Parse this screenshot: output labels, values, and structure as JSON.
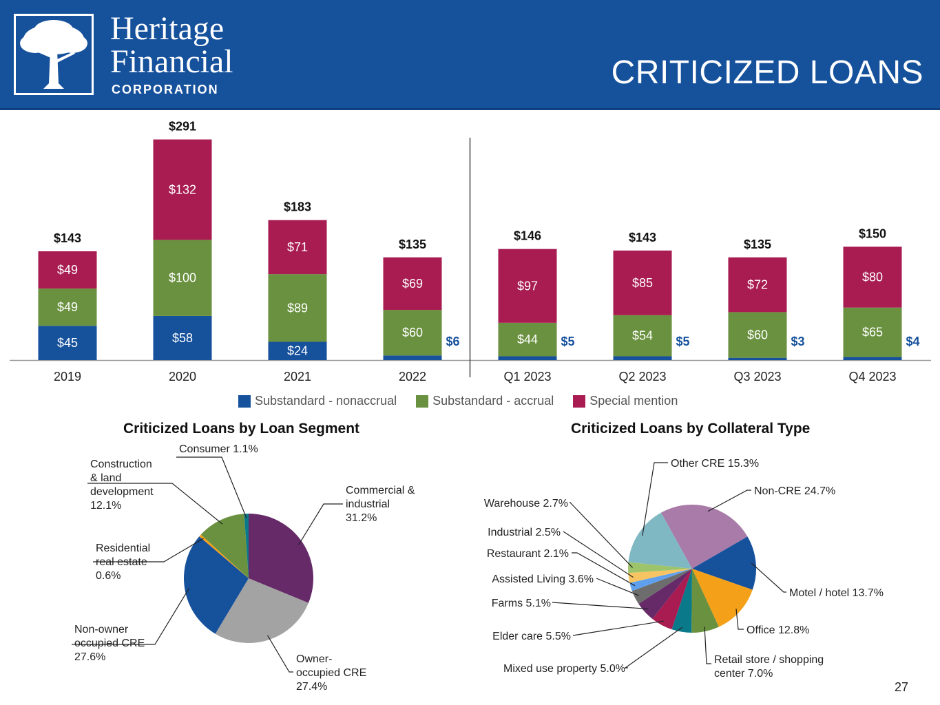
{
  "header": {
    "logo_line1": "Heritage",
    "logo_line2": "Financial",
    "logo_line3": "CORPORATION",
    "title": "CRITICIZED LOANS",
    "brand_color": "#16519c"
  },
  "page_number": "27",
  "chart_data": [
    {
      "type": "bar",
      "stacked": true,
      "categories": [
        "2019",
        "2020",
        "2021",
        "2022",
        "Q1 2023",
        "Q2 2023",
        "Q3 2023",
        "Q4 2023"
      ],
      "series": [
        {
          "name": "Substandard - nonaccrual",
          "color": "#16519c",
          "values": [
            45,
            58,
            24,
            6,
            5,
            5,
            3,
            4
          ],
          "labels": [
            "$45",
            "$58",
            "$24",
            "$6",
            "$5",
            "$5",
            "$3",
            "$4"
          ]
        },
        {
          "name": "Substandard - accrual",
          "color": "#6a913f",
          "values": [
            49,
            100,
            89,
            60,
            44,
            54,
            60,
            65
          ],
          "labels": [
            "$49",
            "$100",
            "$89",
            "$60",
            "$44",
            "$54",
            "$60",
            "$65"
          ]
        },
        {
          "name": "Special mention",
          "color": "#a81c52",
          "values": [
            49,
            132,
            71,
            69,
            97,
            85,
            72,
            80
          ],
          "labels": [
            "$49",
            "$132",
            "$71",
            "$69",
            "$97",
            "$85",
            "$72",
            "$80"
          ]
        }
      ],
      "totals": [
        143,
        291,
        183,
        135,
        146,
        143,
        135,
        150
      ],
      "total_labels": [
        "$143",
        "$291",
        "$183",
        "$135",
        "$146",
        "$143",
        "$135",
        "$150"
      ],
      "ylim": [
        0,
        291
      ],
      "divider_after_index": 3,
      "legend_position": "bottom"
    },
    {
      "type": "pie",
      "title": "Criticized Loans by Loan Segment",
      "slices": [
        {
          "label": "Commercial & industrial 31.2%",
          "label_lines": [
            "Commercial &",
            "industrial",
            "31.2%"
          ],
          "value": 31.2,
          "color": "#662a69"
        },
        {
          "label": "Owner-occupied CRE 27.4%",
          "label_lines": [
            "Owner-",
            "occupied CRE",
            "27.4%"
          ],
          "value": 27.4,
          "color": "#a3a3a3"
        },
        {
          "label": "Non-owner occupied CRE 27.6%",
          "label_lines": [
            "Non-owner",
            "occupied CRE",
            "27.6%"
          ],
          "value": 27.6,
          "color": "#16519c"
        },
        {
          "label": "Residential real estate 0.6%",
          "label_lines": [
            "Residential",
            "real estate",
            "0.6%"
          ],
          "value": 0.6,
          "color": "#f4a019"
        },
        {
          "label": "Construction & land development 12.1%",
          "label_lines": [
            "Construction",
            "& land",
            "development",
            "12.1%"
          ],
          "value": 12.1,
          "color": "#6a913f"
        },
        {
          "label": "Consumer 1.1%",
          "label_lines": [
            "Consumer 1.1%"
          ],
          "value": 1.1,
          "color": "#0a7a8a"
        }
      ]
    },
    {
      "type": "pie",
      "title": "Criticized Loans by Collateral Type",
      "slices": [
        {
          "label": "Non-CRE 24.7%",
          "label_lines": [
            "Non-CRE 24.7%"
          ],
          "value": 24.7,
          "color": "#a87ba9"
        },
        {
          "label": "Motel / hotel 13.7%",
          "label_lines": [
            "Motel / hotel 13.7%"
          ],
          "value": 13.7,
          "color": "#16519c"
        },
        {
          "label": "Office 12.8%",
          "label_lines": [
            "Office 12.8%"
          ],
          "value": 12.8,
          "color": "#f4a019"
        },
        {
          "label": "Retail store / shopping center 7.0%",
          "label_lines": [
            "Retail store / shopping",
            "center 7.0%"
          ],
          "value": 7.0,
          "color": "#6a913f"
        },
        {
          "label": "Mixed use property 5.0%",
          "label_lines": [
            "Mixed use property 5.0%"
          ],
          "value": 5.0,
          "color": "#0a7a8a"
        },
        {
          "label": "Elder care 5.5%",
          "label_lines": [
            "Elder care 5.5%"
          ],
          "value": 5.5,
          "color": "#a81c52"
        },
        {
          "label": "Farms 5.1%",
          "label_lines": [
            "Farms 5.1%"
          ],
          "value": 5.1,
          "color": "#662a69"
        },
        {
          "label": "Assisted Living 3.6%",
          "label_lines": [
            "Assisted Living 3.6%"
          ],
          "value": 3.6,
          "color": "#6d6d6d"
        },
        {
          "label": "Restaurant 2.1%",
          "label_lines": [
            "Restaurant 2.1%"
          ],
          "value": 2.1,
          "color": "#5ea0ee"
        },
        {
          "label": "Industrial 2.5%",
          "label_lines": [
            "Industrial 2.5%"
          ],
          "value": 2.5,
          "color": "#f6c462"
        },
        {
          "label": "Warehouse 2.7%",
          "label_lines": [
            "Warehouse 2.7%"
          ],
          "value": 2.7,
          "color": "#9dc46b"
        },
        {
          "label": "Other CRE 15.3%",
          "label_lines": [
            "Other CRE 15.3%"
          ],
          "value": 15.3,
          "color": "#7fb8c3"
        }
      ]
    }
  ]
}
